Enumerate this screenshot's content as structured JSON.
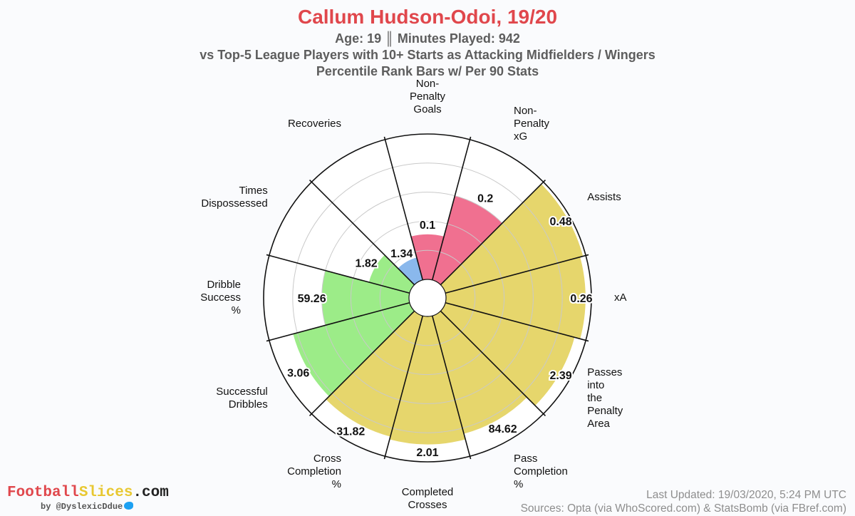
{
  "header": {
    "title": "Callum Hudson-Odoi, 19/20",
    "line1": "Age: 19 ║ Minutes Played: 942",
    "line2": "vs Top-5 League Players with 10+ Starts as Attacking Midfielders / Wingers",
    "line3": "Percentile Rank Bars w/ Per 90 Stats"
  },
  "brand": {
    "logo_part1": "Football",
    "logo_part2": "Slices",
    "logo_part3": ".com",
    "byline": "by @DyslexicDdue",
    "bird_icon": "twitter-bird-icon"
  },
  "footer": {
    "updated": "Last Updated: 19/03/2020, 5:24 PM UTC",
    "sources": "Sources: Opta (via WhoScored.com) & StatsBomb (via FBref.com)"
  },
  "colors": {
    "shooting": "#f07090",
    "creation": "#e6d66c",
    "dribbling": "#9cec88",
    "defending": "#8ab8ec",
    "title": "#e0474c"
  },
  "chart_data": {
    "type": "polar-bar",
    "scale": "percentile",
    "rlim": [
      0,
      100
    ],
    "grid": true,
    "categories": [
      {
        "label": "Non-\nPenalty\nGoals",
        "value_label": "0.1",
        "percentile": 31,
        "group": "shooting"
      },
      {
        "label": "Non-\nPenalty\nxG",
        "value_label": "0.2",
        "percentile": 60,
        "group": "shooting"
      },
      {
        "label": "Assists",
        "value_label": "0.48",
        "percentile": 98,
        "group": "creation"
      },
      {
        "label": "xA",
        "value_label": "0.26",
        "percentile": 96,
        "group": "creation"
      },
      {
        "label": "Passes\ninto\nthe\nPenalty\nArea",
        "value_label": "2.39",
        "percentile": 92,
        "group": "creation"
      },
      {
        "label": "Pass\nCompletion\n%",
        "value_label": "84.62",
        "percentile": 84,
        "group": "creation"
      },
      {
        "label": "Completed\nCrosses",
        "value_label": "2.01",
        "percentile": 88,
        "group": "creation"
      },
      {
        "label": "Cross\nCompletion\n%",
        "value_label": "31.82",
        "percentile": 86,
        "group": "creation"
      },
      {
        "label": "Successful\nDribbles",
        "value_label": "3.06",
        "percentile": 83,
        "group": "dribbling"
      },
      {
        "label": "Dribble\nSuccess\n%",
        "value_label": "59.26",
        "percentile": 60,
        "group": "dribbling"
      },
      {
        "label": "Times\nDispossessed",
        "value_label": "1.82",
        "percentile": 29,
        "group": "dribbling"
      },
      {
        "label": "Recoveries",
        "value_label": "1.34",
        "percentile": 16,
        "group": "defending"
      }
    ]
  }
}
